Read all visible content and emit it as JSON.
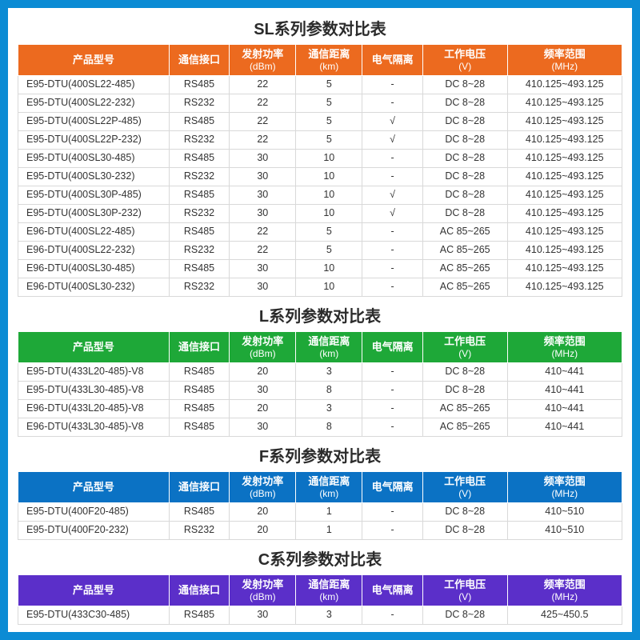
{
  "border_color": "#0b8bd4",
  "columns": [
    {
      "label": "产品型号",
      "sub": ""
    },
    {
      "label": "通信接口",
      "sub": ""
    },
    {
      "label": "发射功率",
      "sub": "(dBm)"
    },
    {
      "label": "通信距离",
      "sub": "(km)"
    },
    {
      "label": "电气隔离",
      "sub": ""
    },
    {
      "label": "工作电压",
      "sub": "(V)"
    },
    {
      "label": "频率范围",
      "sub": "(MHz)"
    }
  ],
  "sections": [
    {
      "title": "SL系列参数对比表",
      "header_bg": "#ec6a1f",
      "rows": [
        [
          "E95-DTU(400SL22-485)",
          "RS485",
          "22",
          "5",
          "-",
          "DC 8~28",
          "410.125~493.125"
        ],
        [
          "E95-DTU(400SL22-232)",
          "RS232",
          "22",
          "5",
          "-",
          "DC 8~28",
          "410.125~493.125"
        ],
        [
          "E95-DTU(400SL22P-485)",
          "RS485",
          "22",
          "5",
          "√",
          "DC 8~28",
          "410.125~493.125"
        ],
        [
          "E95-DTU(400SL22P-232)",
          "RS232",
          "22",
          "5",
          "√",
          "DC 8~28",
          "410.125~493.125"
        ],
        [
          "E95-DTU(400SL30-485)",
          "RS485",
          "30",
          "10",
          "-",
          "DC 8~28",
          "410.125~493.125"
        ],
        [
          "E95-DTU(400SL30-232)",
          "RS232",
          "30",
          "10",
          "-",
          "DC 8~28",
          "410.125~493.125"
        ],
        [
          "E95-DTU(400SL30P-485)",
          "RS485",
          "30",
          "10",
          "√",
          "DC 8~28",
          "410.125~493.125"
        ],
        [
          "E95-DTU(400SL30P-232)",
          "RS232",
          "30",
          "10",
          "√",
          "DC 8~28",
          "410.125~493.125"
        ],
        [
          "E96-DTU(400SL22-485)",
          "RS485",
          "22",
          "5",
          "-",
          "AC 85~265",
          "410.125~493.125"
        ],
        [
          "E96-DTU(400SL22-232)",
          "RS232",
          "22",
          "5",
          "-",
          "AC 85~265",
          "410.125~493.125"
        ],
        [
          "E96-DTU(400SL30-485)",
          "RS485",
          "30",
          "10",
          "-",
          "AC 85~265",
          "410.125~493.125"
        ],
        [
          "E96-DTU(400SL30-232)",
          "RS232",
          "30",
          "10",
          "-",
          "AC 85~265",
          "410.125~493.125"
        ]
      ]
    },
    {
      "title": "L系列参数对比表",
      "header_bg": "#1ea838",
      "rows": [
        [
          "E95-DTU(433L20-485)-V8",
          "RS485",
          "20",
          "3",
          "-",
          "DC 8~28",
          "410~441"
        ],
        [
          "E95-DTU(433L30-485)-V8",
          "RS485",
          "30",
          "8",
          "-",
          "DC 8~28",
          "410~441"
        ],
        [
          "E96-DTU(433L20-485)-V8",
          "RS485",
          "20",
          "3",
          "-",
          "AC 85~265",
          "410~441"
        ],
        [
          "E96-DTU(433L30-485)-V8",
          "RS485",
          "30",
          "8",
          "-",
          "AC 85~265",
          "410~441"
        ]
      ]
    },
    {
      "title": "F系列参数对比表",
      "header_bg": "#0b72c4",
      "rows": [
        [
          "E95-DTU(400F20-485)",
          "RS485",
          "20",
          "1",
          "-",
          "DC 8~28",
          "410~510"
        ],
        [
          "E95-DTU(400F20-232)",
          "RS232",
          "20",
          "1",
          "-",
          "DC 8~28",
          "410~510"
        ]
      ]
    },
    {
      "title": "C系列参数对比表",
      "header_bg": "#5b2fc9",
      "rows": [
        [
          "E95-DTU(433C30-485)",
          "RS485",
          "30",
          "3",
          "-",
          "DC 8~28",
          "425~450.5"
        ]
      ]
    }
  ]
}
